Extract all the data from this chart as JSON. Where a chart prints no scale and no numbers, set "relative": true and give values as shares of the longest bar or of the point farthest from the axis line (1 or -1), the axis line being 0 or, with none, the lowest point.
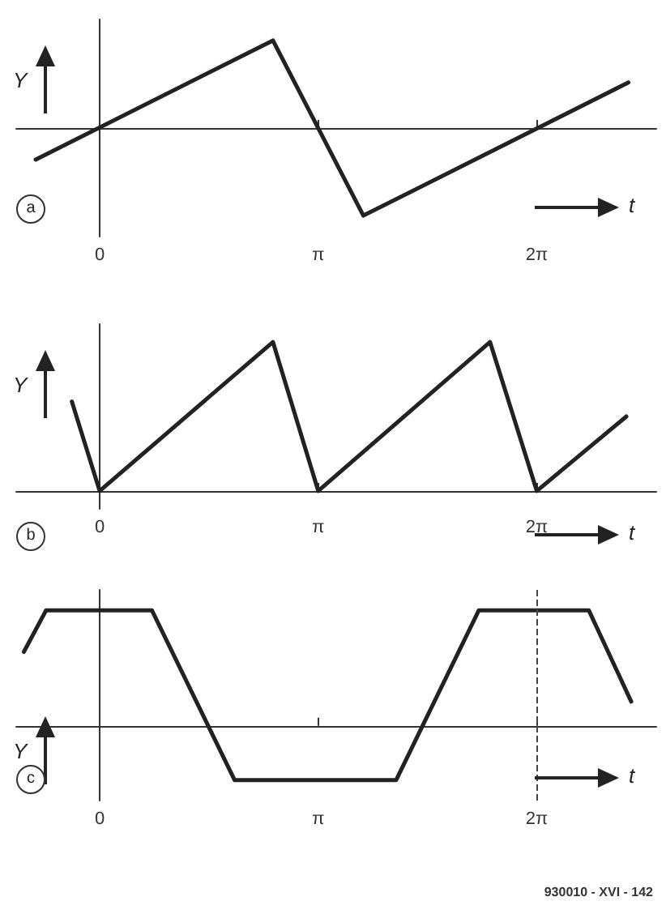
{
  "chart_data": [
    {
      "type": "line",
      "relative": true,
      "xlabel": "t",
      "ylabel": "Y",
      "annotations": [
        "a"
      ],
      "xlim": [
        -1.2,
        8
      ],
      "xticks": [
        {
          "value": 0,
          "label": "0"
        },
        {
          "value": 3.1416,
          "label": "π"
        },
        {
          "value": 6.2832,
          "label": "2π"
        }
      ],
      "series": [
        {
          "color": "#222222",
          "x": [
            -0.92,
            2.49,
            3.79,
            7.6
          ],
          "values": [
            -0.36,
            1,
            -1,
            0.52
          ]
        }
      ]
    },
    {
      "type": "line",
      "relative": true,
      "xlabel": "t",
      "ylabel": "Y",
      "annotations": [
        "b"
      ],
      "xlim": [
        -1.2,
        8
      ],
      "xticks": [
        {
          "value": 0,
          "label": "0"
        },
        {
          "value": 3.1416,
          "label": "π"
        },
        {
          "value": 6.2832,
          "label": "2π"
        }
      ],
      "series": [
        {
          "color": "#222222",
          "x": [
            -0.4,
            0,
            2.49,
            3.1416,
            5.61,
            6.2832,
            7.57
          ],
          "values": [
            0.6,
            0,
            1,
            0,
            1,
            0,
            0.5
          ]
        }
      ]
    },
    {
      "type": "line",
      "relative": true,
      "xlabel": "t",
      "ylabel": "Y",
      "annotations": [
        "c",
        "930010 - XVI - 142"
      ],
      "xlim": [
        -1.2,
        8
      ],
      "xticks": [
        {
          "value": 0,
          "label": "0"
        },
        {
          "value": 3.1416,
          "label": "π"
        },
        {
          "value": 6.2832,
          "label": "2π"
        }
      ],
      "ref_lines": [
        {
          "axis": "x",
          "value": 6.2832,
          "line_style": "dashed",
          "color": "#444444"
        }
      ],
      "series": [
        {
          "color": "#222222",
          "x": [
            -1.09,
            -0.77,
            0.75,
            1.94,
            4.26,
            5.45,
            7.03,
            7.64
          ],
          "values": [
            0.64,
            1,
            1,
            -0.47,
            -0.47,
            1,
            1,
            0.21
          ]
        }
      ]
    }
  ]
}
